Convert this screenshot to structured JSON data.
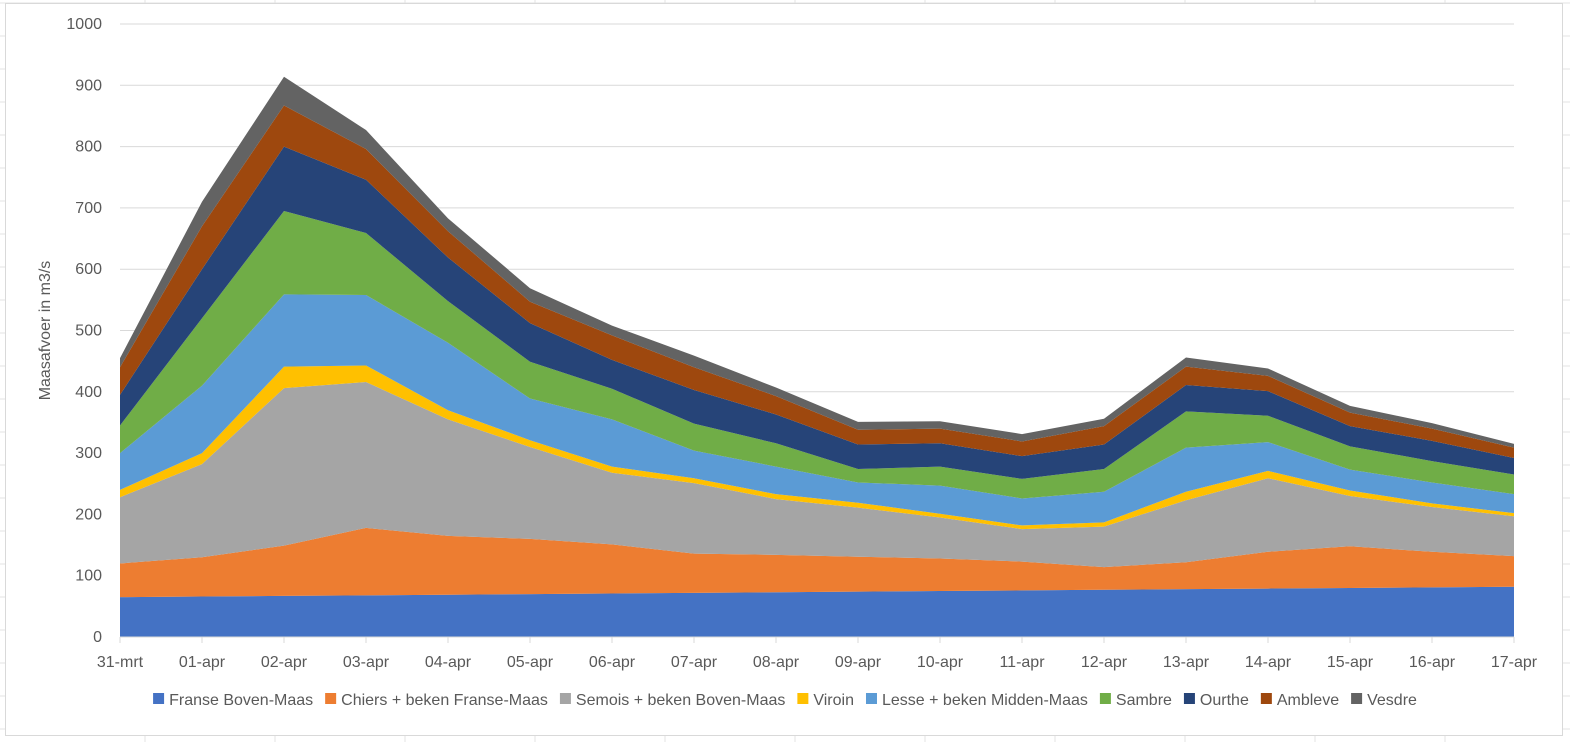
{
  "chart_data": {
    "type": "area",
    "stacked": true,
    "ylabel": "Maasafvoer in m3/s",
    "xlabel": "",
    "ylim": [
      0,
      1000
    ],
    "yticks": [
      0,
      100,
      200,
      300,
      400,
      500,
      600,
      700,
      800,
      900,
      1000
    ],
    "grid": true,
    "legend_position": "bottom",
    "categories": [
      "31-mrt",
      "01-apr",
      "02-apr",
      "03-apr",
      "04-apr",
      "05-apr",
      "06-apr",
      "07-apr",
      "08-apr",
      "09-apr",
      "10-apr",
      "11-apr",
      "12-apr",
      "13-apr",
      "14-apr",
      "15-apr",
      "16-apr",
      "17-apr"
    ],
    "series": [
      {
        "name": "Franse Boven-Maas",
        "color": "#4472C4",
        "values": [
          65,
          66,
          67,
          68,
          69,
          70,
          71,
          72,
          73,
          74,
          75,
          76,
          77,
          78,
          79,
          80,
          81,
          82
        ]
      },
      {
        "name": "Chiers + beken Franse-Maas",
        "color": "#ED7D31",
        "values": [
          55,
          64,
          82,
          110,
          96,
          90,
          80,
          64,
          61,
          57,
          53,
          47,
          37,
          44,
          60,
          68,
          58,
          50
        ]
      },
      {
        "name": "Semois + beken Boven-Maas",
        "color": "#A5A5A5",
        "values": [
          108,
          152,
          257,
          238,
          190,
          150,
          117,
          115,
          91,
          80,
          67,
          53,
          66,
          101,
          120,
          82,
          73,
          65
        ]
      },
      {
        "name": "Viroin",
        "color": "#FFC000",
        "values": [
          12,
          18,
          35,
          27,
          15,
          11,
          10,
          8,
          8,
          8,
          6,
          6,
          7,
          14,
          12,
          9,
          6,
          5
        ]
      },
      {
        "name": "Lesse + beken Midden-Maas",
        "color": "#5B9BD5",
        "values": [
          60,
          110,
          118,
          115,
          110,
          68,
          77,
          45,
          45,
          33,
          46,
          44,
          50,
          72,
          47,
          34,
          34,
          31
        ]
      },
      {
        "name": "Sambre",
        "color": "#70AD47",
        "values": [
          45,
          110,
          136,
          101,
          68,
          60,
          50,
          44,
          38,
          22,
          31,
          32,
          37,
          59,
          43,
          38,
          35,
          32
        ]
      },
      {
        "name": "Ourthe",
        "color": "#264478",
        "values": [
          50,
          80,
          105,
          87,
          71,
          63,
          47,
          55,
          47,
          40,
          38,
          37,
          40,
          43,
          40,
          33,
          33,
          27
        ]
      },
      {
        "name": "Ambleve",
        "color": "#9E480E",
        "values": [
          45,
          70,
          67,
          50,
          43,
          35,
          40,
          37,
          30,
          24,
          24,
          24,
          30,
          30,
          25,
          22,
          20,
          17
        ]
      },
      {
        "name": "Vesdre",
        "color": "#636363",
        "values": [
          15,
          40,
          47,
          31,
          21,
          22,
          16,
          19,
          14,
          13,
          12,
          12,
          12,
          15,
          12,
          11,
          9,
          6
        ]
      }
    ]
  }
}
